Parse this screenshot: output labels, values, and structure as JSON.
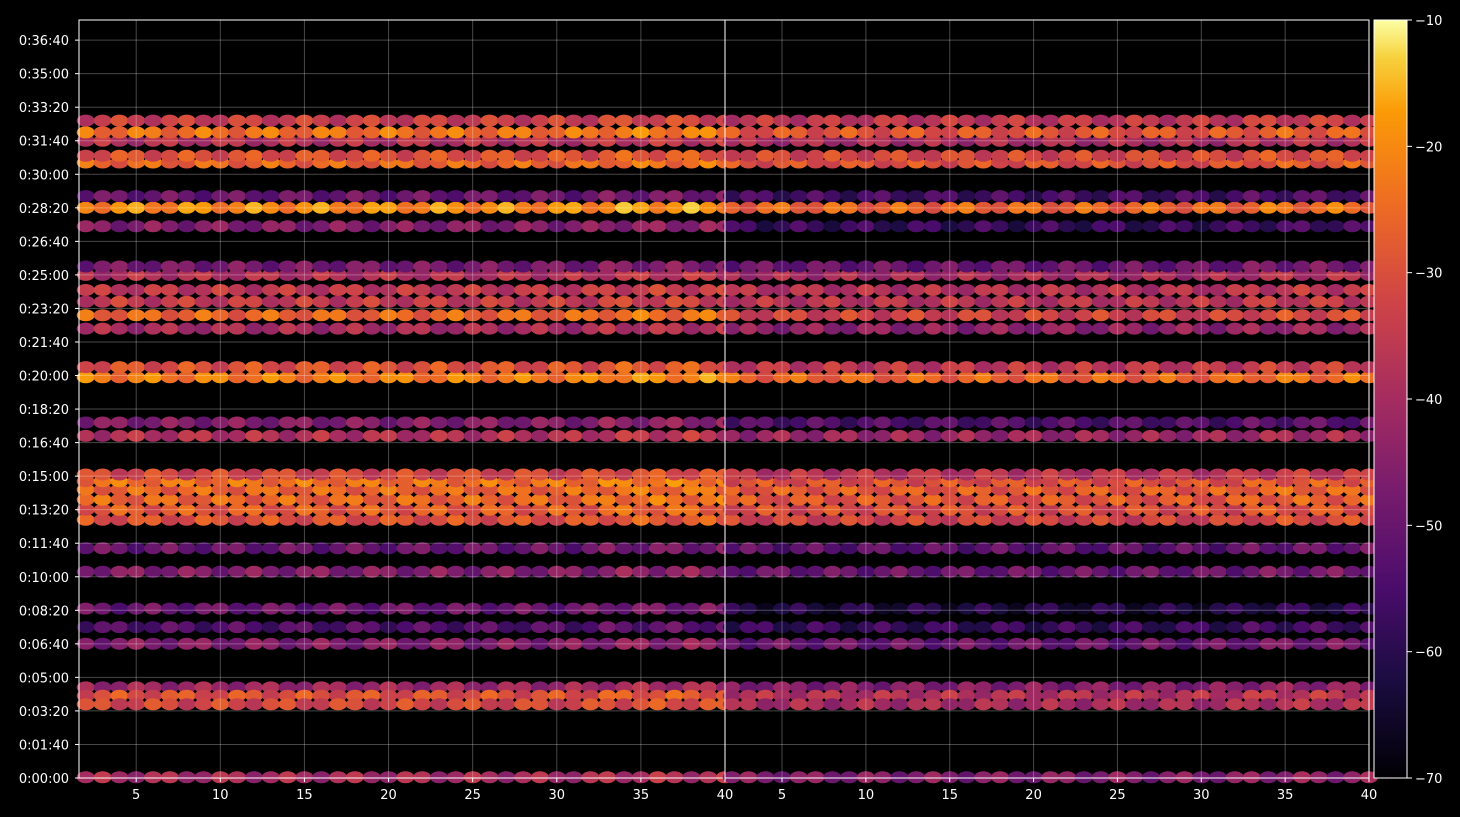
{
  "chart_data": {
    "type": "heatmap",
    "title": "",
    "xlabel": "",
    "ylabel": "",
    "panels": 2,
    "x_range": [
      1.6,
      40
    ],
    "x_ticks": [
      5,
      10,
      15,
      20,
      25,
      30,
      35,
      40
    ],
    "y_range_seconds": [
      0,
      2260
    ],
    "y_ticks": [
      {
        "seconds": 0,
        "label": "0:00:00"
      },
      {
        "seconds": 100,
        "label": "0:01:40"
      },
      {
        "seconds": 200,
        "label": "0:03:20"
      },
      {
        "seconds": 300,
        "label": "0:05:00"
      },
      {
        "seconds": 400,
        "label": "0:06:40"
      },
      {
        "seconds": 500,
        "label": "0:08:20"
      },
      {
        "seconds": 600,
        "label": "0:10:00"
      },
      {
        "seconds": 700,
        "label": "0:11:40"
      },
      {
        "seconds": 800,
        "label": "0:13:20"
      },
      {
        "seconds": 900,
        "label": "0:15:00"
      },
      {
        "seconds": 1000,
        "label": "0:16:40"
      },
      {
        "seconds": 1100,
        "label": "0:18:20"
      },
      {
        "seconds": 1200,
        "label": "0:20:00"
      },
      {
        "seconds": 1300,
        "label": "0:21:40"
      },
      {
        "seconds": 1400,
        "label": "0:23:20"
      },
      {
        "seconds": 1500,
        "label": "0:25:00"
      },
      {
        "seconds": 1600,
        "label": "0:26:40"
      },
      {
        "seconds": 1700,
        "label": "0:28:20"
      },
      {
        "seconds": 1800,
        "label": "0:30:00"
      },
      {
        "seconds": 1900,
        "label": "0:31:40"
      },
      {
        "seconds": 2000,
        "label": "0:33:20"
      },
      {
        "seconds": 2100,
        "label": "0:35:00"
      },
      {
        "seconds": 2200,
        "label": "0:36:40"
      }
    ],
    "colorbar": {
      "colormap": "inferno",
      "range": [
        -70,
        -10
      ],
      "ticks": [
        -10,
        -20,
        -30,
        -40,
        -50,
        -60,
        -70
      ]
    },
    "rows": [
      {
        "t": 2,
        "left": -40,
        "right": -46
      },
      {
        "t": 270,
        "left": -42,
        "right": -46
      },
      {
        "t": 245,
        "left": -30,
        "right": -38
      },
      {
        "t": 220,
        "left": -32,
        "right": -40
      },
      {
        "t": 400,
        "left": -46,
        "right": -50
      },
      {
        "t": 450,
        "left": -54,
        "right": -58
      },
      {
        "t": 505,
        "left": -50,
        "right": -62
      },
      {
        "t": 615,
        "left": -46,
        "right": -50
      },
      {
        "t": 685,
        "left": -50,
        "right": -52
      },
      {
        "t": 770,
        "left": -30,
        "right": -33
      },
      {
        "t": 800,
        "left": -28,
        "right": -31
      },
      {
        "t": 830,
        "left": -26,
        "right": -29
      },
      {
        "t": 860,
        "left": -26,
        "right": -28
      },
      {
        "t": 885,
        "left": -24,
        "right": -30
      },
      {
        "t": 905,
        "left": -32,
        "right": -37
      },
      {
        "t": 1020,
        "left": -38,
        "right": -42
      },
      {
        "t": 1060,
        "left": -46,
        "right": -54
      },
      {
        "t": 1195,
        "left": -22,
        "right": -26
      },
      {
        "t": 1225,
        "left": -30,
        "right": -36
      },
      {
        "t": 1340,
        "left": -40,
        "right": -44
      },
      {
        "t": 1380,
        "left": -26,
        "right": -33
      },
      {
        "t": 1420,
        "left": -35,
        "right": -37
      },
      {
        "t": 1455,
        "left": -36,
        "right": -38
      },
      {
        "t": 1500,
        "left": -38,
        "right": -40
      },
      {
        "t": 1525,
        "left": -48,
        "right": -50
      },
      {
        "t": 1645,
        "left": -46,
        "right": -58
      },
      {
        "t": 1700,
        "left": -20,
        "right": -26
      },
      {
        "t": 1735,
        "left": -50,
        "right": -56
      },
      {
        "t": 1835,
        "left": -26,
        "right": -30
      },
      {
        "t": 1855,
        "left": -30,
        "right": -32
      },
      {
        "t": 1900,
        "left": -38,
        "right": -40
      },
      {
        "t": 1925,
        "left": -24,
        "right": -29
      },
      {
        "t": 1960,
        "left": -34,
        "right": -36
      }
    ]
  }
}
